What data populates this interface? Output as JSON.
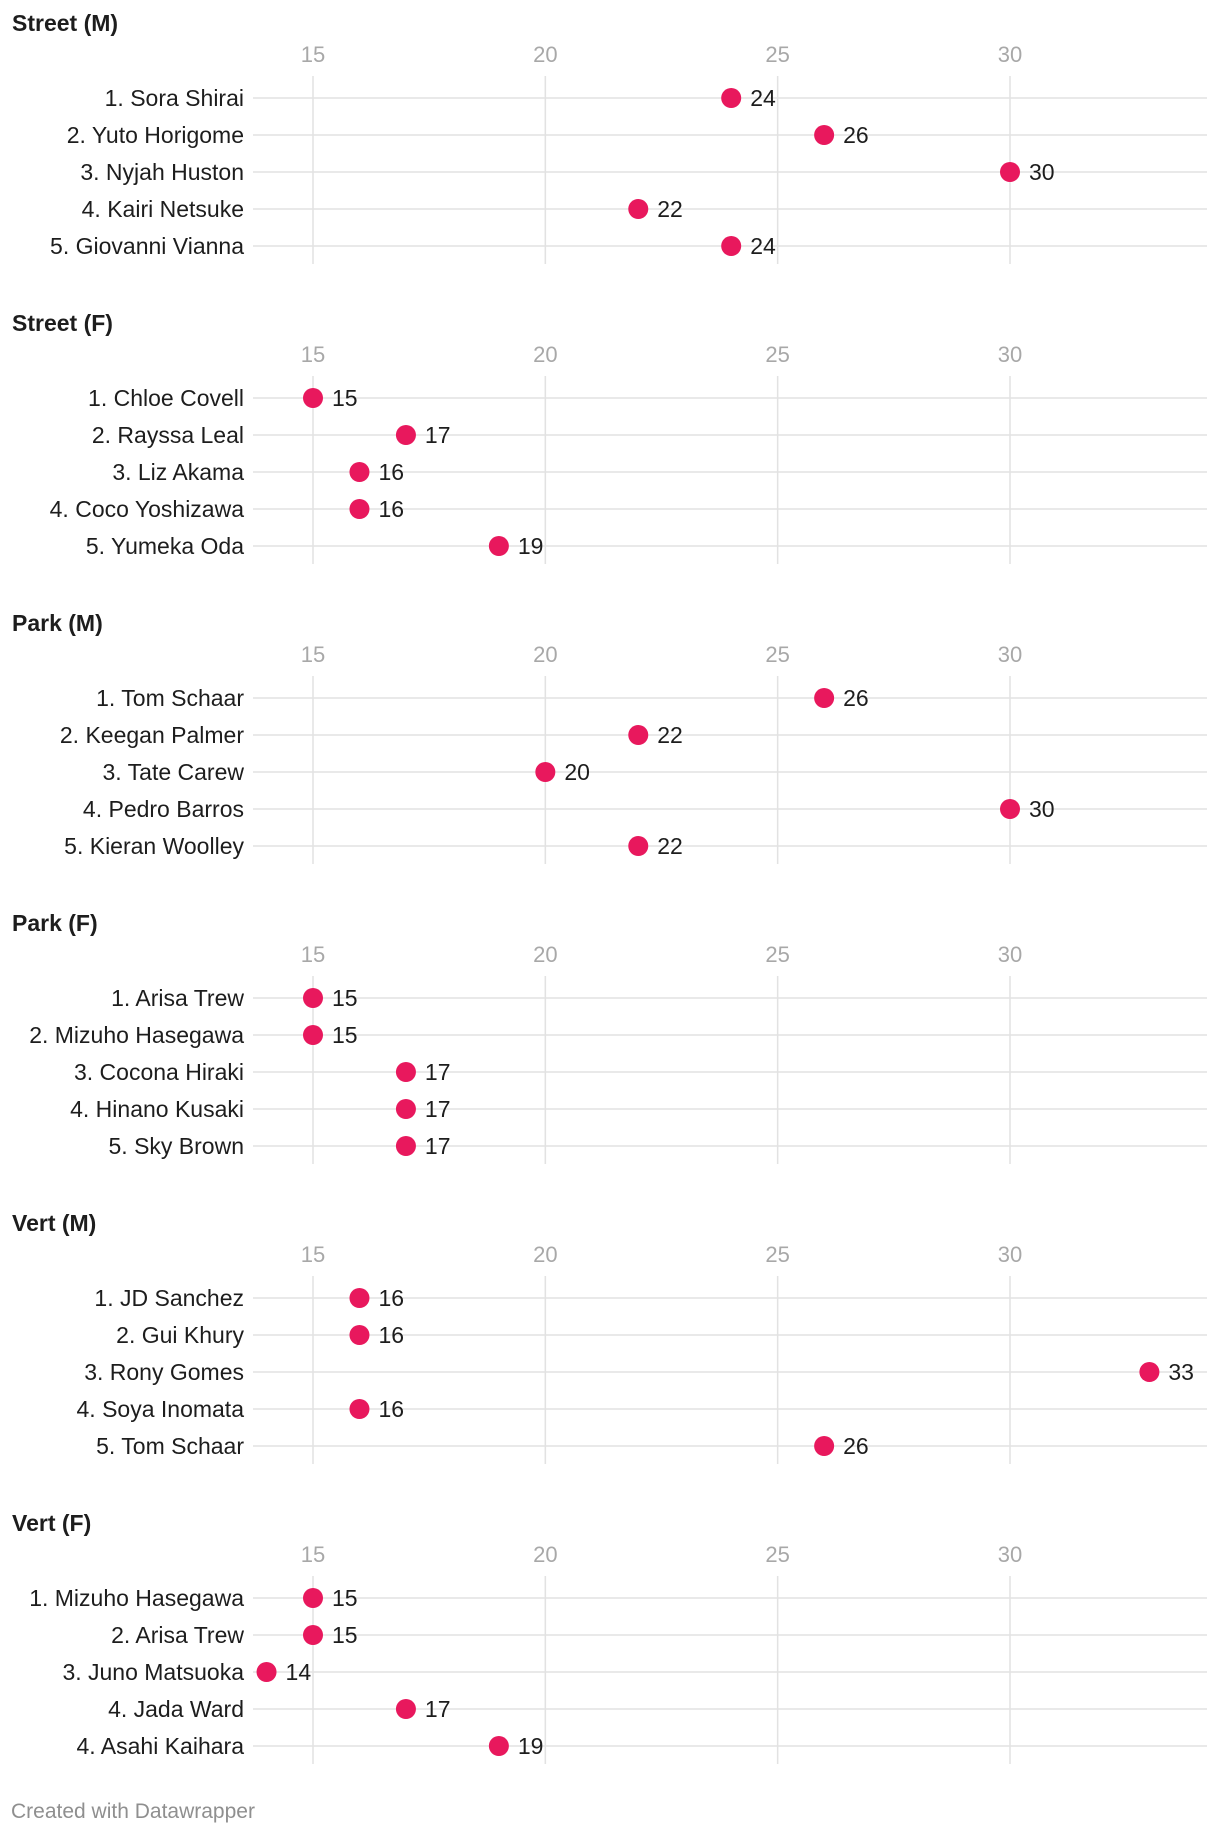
{
  "chart_data": [
    {
      "type": "scatter",
      "title": "Street (M)",
      "xlim": [
        11.3,
        35
      ],
      "xticks": [
        15,
        20,
        25,
        30
      ],
      "categories": [
        "1. Sora Shirai",
        "2. Yuto Horigome",
        "3. Nyjah Huston",
        "4. Kairi Netsuke",
        "5. Giovanni Vianna"
      ],
      "values": [
        24,
        26,
        30,
        22,
        24
      ]
    },
    {
      "type": "scatter",
      "title": "Street (F)",
      "xlim": [
        11.3,
        35
      ],
      "xticks": [
        15,
        20,
        25,
        30
      ],
      "categories": [
        "1. Chloe Covell",
        "2. Rayssa Leal",
        "3. Liz Akama",
        "4. Coco Yoshizawa",
        "5. Yumeka Oda"
      ],
      "values": [
        15,
        17,
        16,
        16,
        19
      ]
    },
    {
      "type": "scatter",
      "title": "Park (M)",
      "xlim": [
        11.3,
        35
      ],
      "xticks": [
        15,
        20,
        25,
        30
      ],
      "categories": [
        "1. Tom Schaar",
        "2. Keegan Palmer",
        "3. Tate Carew",
        "4. Pedro Barros",
        "5. Kieran Woolley"
      ],
      "values": [
        26,
        22,
        20,
        30,
        22
      ]
    },
    {
      "type": "scatter",
      "title": "Park (F)",
      "xlim": [
        11.3,
        35
      ],
      "xticks": [
        15,
        20,
        25,
        30
      ],
      "categories": [
        "1. Arisa Trew",
        "2. Mizuho Hasegawa",
        "3. Cocona Hiraki",
        "4. Hinano Kusaki",
        "5. Sky Brown"
      ],
      "values": [
        15,
        15,
        17,
        17,
        17
      ]
    },
    {
      "type": "scatter",
      "title": "Vert (M)",
      "xlim": [
        11.3,
        35
      ],
      "xticks": [
        15,
        20,
        25,
        30
      ],
      "categories": [
        "1. JD Sanchez",
        "2. Gui Khury",
        "3. Rony Gomes",
        "4. Soya Inomata",
        "5. Tom Schaar"
      ],
      "values": [
        16,
        16,
        33,
        16,
        26
      ]
    },
    {
      "type": "scatter",
      "title": "Vert (F)",
      "xlim": [
        11.3,
        35
      ],
      "xticks": [
        15,
        20,
        25,
        30
      ],
      "categories": [
        "1. Mizuho Hasegawa",
        "2. Arisa Trew",
        "3. Juno Matsuoka",
        "4. Jada Ward",
        "4. Asahi Kaihara"
      ],
      "values": [
        15,
        15,
        14,
        17,
        19
      ]
    }
  ],
  "colors": {
    "dot": "#e8185d",
    "grid": "#e2e2e2",
    "tick": "#a8a8a8",
    "text": "#1d1d1d"
  },
  "footer": {
    "credit": "Created with Datawrapper"
  }
}
